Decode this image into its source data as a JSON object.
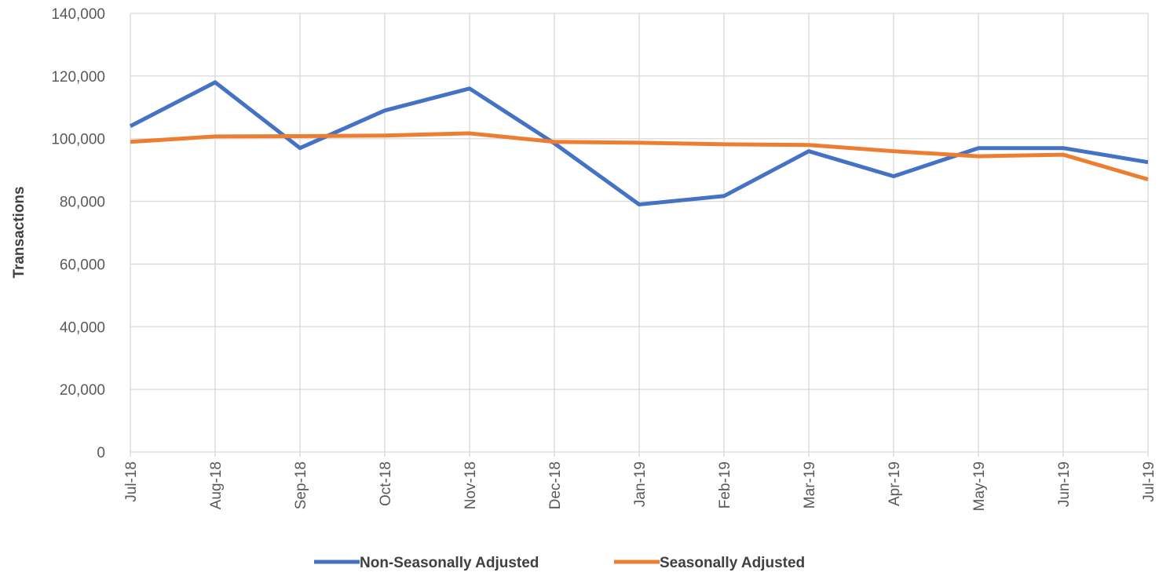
{
  "chart_data": {
    "type": "line",
    "y_axis_label": "Transactions",
    "categories": [
      "Jul-18",
      "Aug-18",
      "Sep-18",
      "Oct-18",
      "Nov-18",
      "Dec-18",
      "Jan-19",
      "Feb-19",
      "Mar-19",
      "Apr-19",
      "May-19",
      "Jun-19",
      "Jul-19"
    ],
    "series": [
      {
        "name": "Non-Seasonally Adjusted",
        "color": "#4472c4",
        "values": [
          104000,
          118000,
          97000,
          109000,
          116000,
          98500,
          79000,
          81700,
          96000,
          88000,
          97000,
          97000,
          92500
        ]
      },
      {
        "name": "Seasonally Adjusted",
        "color": "#ed7d31",
        "values": [
          99000,
          100700,
          100800,
          101000,
          101700,
          99000,
          98700,
          98200,
          98000,
          96000,
          94400,
          94900,
          87000
        ]
      }
    ],
    "ylim": [
      0,
      140000
    ],
    "yticks": [
      0,
      {
        "value": 20000,
        "label": "20,000"
      },
      {
        "value": 40000,
        "label": "40,000"
      },
      {
        "value": 60000,
        "label": "60,000"
      },
      {
        "value": 80000,
        "label": "80,000"
      },
      {
        "value": 100000,
        "label": "100,000"
      },
      {
        "value": 120000,
        "label": "120,000"
      },
      {
        "value": 140000,
        "label": "140,000"
      }
    ],
    "grid": true,
    "legend": "bottom"
  }
}
